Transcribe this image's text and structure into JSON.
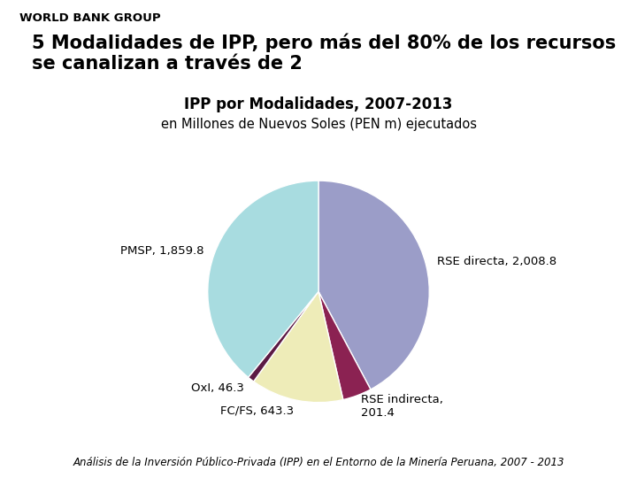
{
  "chart_data": {
    "type": "pie",
    "header": "WORLD BANK GROUP",
    "title": "5 Modalidades de IPP, pero más del 80% de los recursos\nse canalizan a través de 2",
    "subtitle": [
      "IPP por Modalidades, 2007-2013",
      "en Millones de Nuevos Soles (PEN m) ejecutados"
    ],
    "footer": "Análisis de la Inversión Público-Privada (IPP) en el Entorno de la Minería Peruana, 2007 - 2013",
    "categories": [
      "RSE directa, 2,008.8",
      "RSE indirecta,\n201.4",
      "FC/FS, 643.3",
      "OxI, 46.3",
      "PMSP, 1,859.8"
    ],
    "values": [
      2008.8,
      201.4,
      643.3,
      46.3,
      1859.8
    ],
    "colors": [
      "#9B9DC8",
      "#8B2252",
      "#EEECB8",
      "#5C1A44",
      "#A8DCE0"
    ]
  }
}
